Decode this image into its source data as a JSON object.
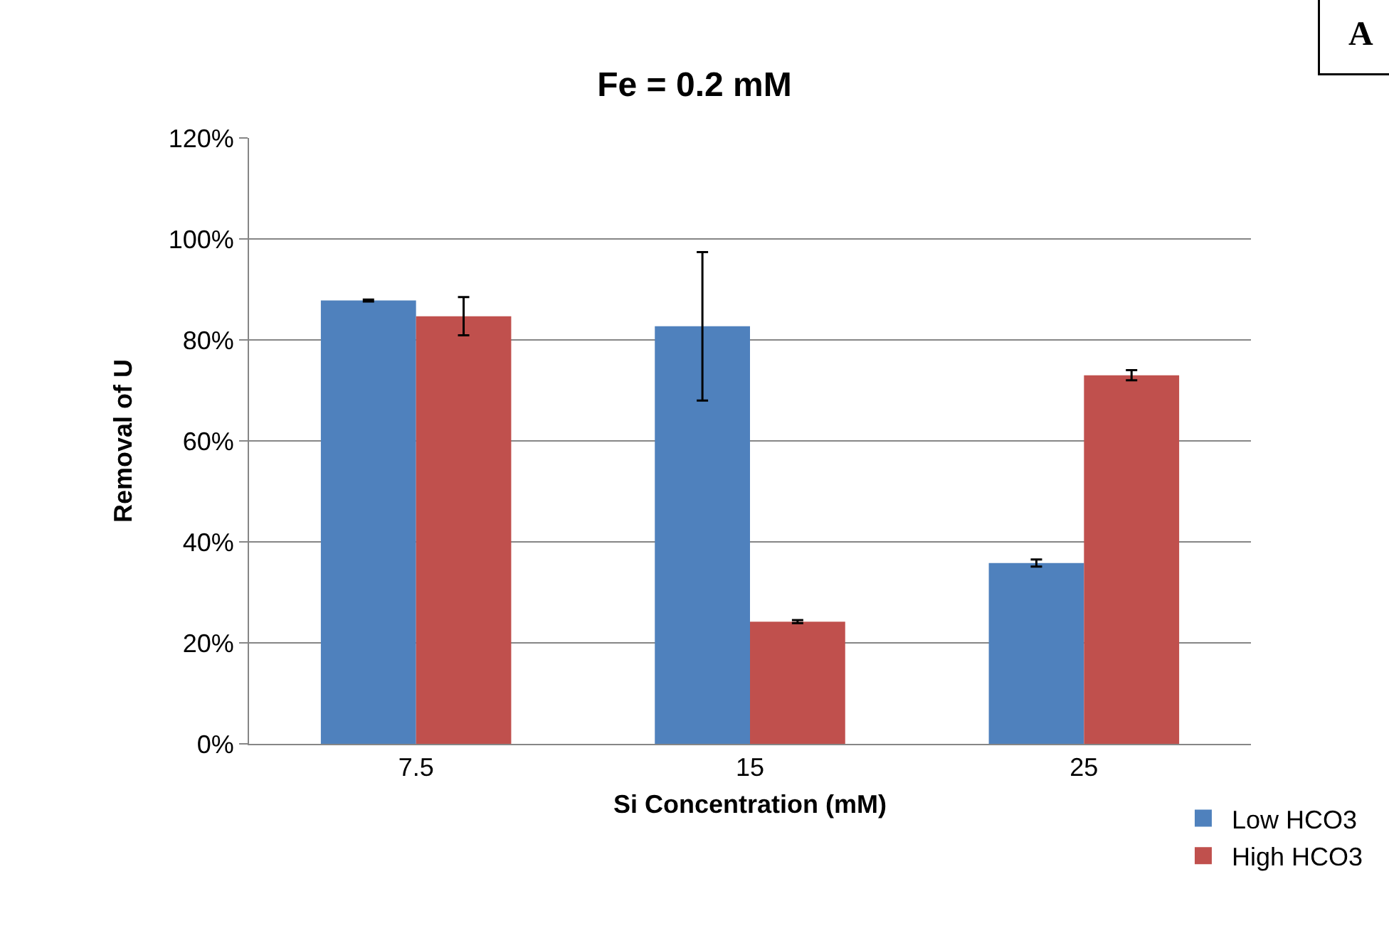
{
  "chart_data": {
    "type": "bar",
    "title": "Fe = 0.2 mM",
    "xlabel": "Si Concentration (mM)",
    "ylabel": "Removal of U",
    "categories": [
      "7.5",
      "15",
      "25"
    ],
    "series": [
      {
        "name": "Low HCO3",
        "color": "#4f81bd",
        "values": [
          87.8,
          82.7,
          35.8
        ],
        "errors": [
          0.2,
          14.7,
          0.7
        ]
      },
      {
        "name": "High HCO3",
        "color": "#c0504d",
        "values": [
          84.7,
          24.2,
          73.0
        ],
        "errors": [
          3.8,
          0.3,
          1.0
        ]
      }
    ],
    "ylim": [
      0,
      120
    ],
    "yticks": [
      {
        "value": 0,
        "label": "0%"
      },
      {
        "value": 20,
        "label": "20%"
      },
      {
        "value": 40,
        "label": "40%"
      },
      {
        "value": 60,
        "label": "60%"
      },
      {
        "value": 80,
        "label": "80%"
      },
      {
        "value": 100,
        "label": "100%"
      },
      {
        "value": 120,
        "label": "120%"
      }
    ],
    "grid": "y",
    "legend": "bottom right",
    "annotations": [
      "A"
    ]
  }
}
